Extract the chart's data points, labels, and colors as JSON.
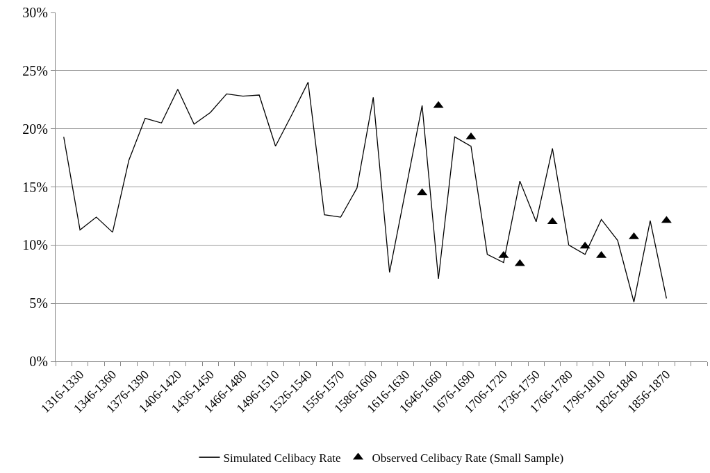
{
  "chart_data": {
    "type": "line",
    "categories": [
      null,
      "1316-1330",
      null,
      "1346-1360",
      null,
      "1376-1390",
      null,
      "1406-1420",
      null,
      "1436-1450",
      null,
      "1466-1480",
      null,
      "1496-1510",
      null,
      "1526-1540",
      null,
      "1556-1570",
      null,
      "1586-1600",
      null,
      "1616-1630",
      null,
      "1646-1660",
      null,
      "1676-1690",
      null,
      "1706-1720",
      null,
      "1736-1750",
      null,
      "1766-1780",
      null,
      "1796-1810",
      null,
      "1826-1840",
      null,
      "1856-1870",
      null,
      null
    ],
    "series": [
      {
        "name": "Simulated Celibacy Rate",
        "type": "line",
        "marker": "none",
        "color": "#000000",
        "values": [
          19.3,
          11.3,
          12.4,
          11.1,
          17.3,
          20.9,
          20.5,
          23.4,
          20.4,
          21.4,
          23.0,
          22.8,
          22.9,
          18.5,
          21.2,
          24.0,
          12.6,
          12.4,
          14.9,
          22.7,
          7.65,
          14.8,
          22.0,
          7.1,
          19.3,
          18.5,
          9.2,
          8.5,
          15.5,
          12.0,
          18.3,
          10.0,
          9.2,
          12.2,
          10.4,
          5.1,
          12.1,
          5.4,
          null,
          null
        ]
      },
      {
        "name": "Observed Celibacy Rate (Small Sample)",
        "type": "scatter",
        "marker": "triangle",
        "color": "#000000",
        "values": [
          null,
          null,
          null,
          null,
          null,
          null,
          null,
          null,
          null,
          null,
          null,
          null,
          null,
          null,
          null,
          null,
          null,
          null,
          null,
          null,
          null,
          null,
          14.5,
          22.0,
          null,
          19.3,
          null,
          9.1,
          8.4,
          null,
          12.0,
          null,
          9.9,
          9.1,
          null,
          10.7,
          null,
          12.1,
          null,
          null
        ]
      }
    ],
    "ylim": [
      0,
      30
    ],
    "yticks": [
      {
        "value": 0,
        "label": "0%"
      },
      {
        "value": 5,
        "label": "5%"
      },
      {
        "value": 10,
        "label": "10%"
      },
      {
        "value": 15,
        "label": "15%"
      },
      {
        "value": 20,
        "label": "20%"
      },
      {
        "value": 25,
        "label": "25%"
      },
      {
        "value": 30,
        "label": "30%"
      }
    ],
    "grid": "y",
    "legend": "bottom"
  }
}
